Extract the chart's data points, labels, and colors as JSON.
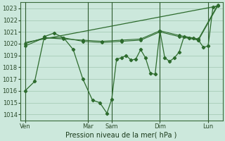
{
  "bg_color": "#cce8dc",
  "grid_color": "#a8ccb8",
  "line_color": "#2d6b2d",
  "marker_color": "#2d6b2d",
  "xlabel": "Pression niveau de la mer( hPa )",
  "ylim": [
    1013.5,
    1023.5
  ],
  "yticks": [
    1014,
    1015,
    1016,
    1017,
    1018,
    1019,
    1020,
    1021,
    1022,
    1023
  ],
  "xlim": [
    0,
    42
  ],
  "xtick_labels": [
    "Ven",
    "Mar",
    "Sam",
    "Dim",
    "Lun"
  ],
  "xtick_positions": [
    1,
    14,
    19,
    29,
    39
  ],
  "vlines": [
    1,
    14,
    19,
    29,
    39
  ],
  "series1_x": [
    1,
    3,
    5,
    7,
    9,
    11,
    13,
    15,
    16.5,
    18,
    19,
    20,
    21,
    22,
    23,
    24,
    25,
    26,
    27,
    28,
    29,
    30,
    31,
    32,
    33,
    34,
    35,
    36,
    37,
    38,
    39,
    40,
    41
  ],
  "series1_y": [
    1016.0,
    1016.8,
    1020.6,
    1020.9,
    1020.5,
    1019.5,
    1017.0,
    1015.2,
    1015.0,
    1014.1,
    1015.3,
    1018.7,
    1018.8,
    1019.0,
    1018.6,
    1018.7,
    1019.5,
    1018.8,
    1017.5,
    1017.4,
    1021.1,
    1018.8,
    1018.5,
    1018.8,
    1019.3,
    1020.6,
    1020.5,
    1020.5,
    1020.3,
    1019.7,
    1019.8,
    1023.1,
    1023.2
  ],
  "series2_x": [
    1,
    5,
    9,
    13,
    17,
    21,
    25,
    29,
    33,
    37,
    41
  ],
  "series2_y": [
    1019.8,
    1020.5,
    1020.5,
    1020.2,
    1020.1,
    1020.2,
    1020.3,
    1021.0,
    1020.6,
    1020.3,
    1023.2
  ],
  "series3_x": [
    1,
    5,
    9,
    13,
    17,
    21,
    25,
    29,
    33,
    37,
    41
  ],
  "series3_y": [
    1020.0,
    1020.5,
    1020.4,
    1020.3,
    1020.2,
    1020.3,
    1020.4,
    1021.1,
    1020.7,
    1020.4,
    1023.3
  ],
  "series4_x": [
    1,
    41
  ],
  "series4_y": [
    1020.1,
    1023.2
  ]
}
